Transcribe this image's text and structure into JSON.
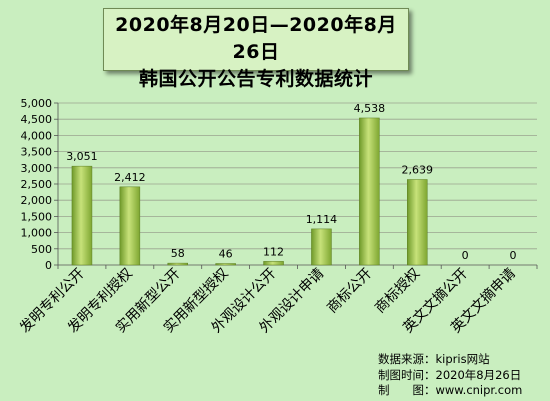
{
  "title": {
    "line1": "2020年8月20日—2020年8月26日",
    "line2": "韩国公开公告专利数据统计"
  },
  "chart_data": {
    "type": "bar",
    "categories": [
      "发明专利公开",
      "发明专利授权",
      "实用新型公开",
      "实用新型授权",
      "外观设计公开",
      "外观设计申请",
      "商标公开",
      "商标授权",
      "英文文摘公开",
      "英文文摘申请"
    ],
    "values": [
      3051,
      2412,
      58,
      46,
      112,
      1114,
      4538,
      2639,
      0,
      0
    ],
    "value_labels": [
      "3,051",
      "2,412",
      "58",
      "46",
      "112",
      "1,114",
      "4,538",
      "2,639",
      "0",
      "0"
    ],
    "ylim": [
      0,
      5000
    ],
    "yticks": [
      0,
      500,
      1000,
      1500,
      2000,
      2500,
      3000,
      3500,
      4000,
      4500,
      5000
    ],
    "ytick_labels": [
      "0",
      "500",
      "1,000",
      "1,500",
      "2,000",
      "2,500",
      "3,000",
      "3,500",
      "4,000",
      "4,500",
      "5,000"
    ],
    "grid": true,
    "bar_color": "#8fb73a"
  },
  "source": {
    "line1": "数据来源：kipris网站",
    "line2": "制图时间：2020年8月26日",
    "line3": "制　　图：www.cnipr.com"
  }
}
